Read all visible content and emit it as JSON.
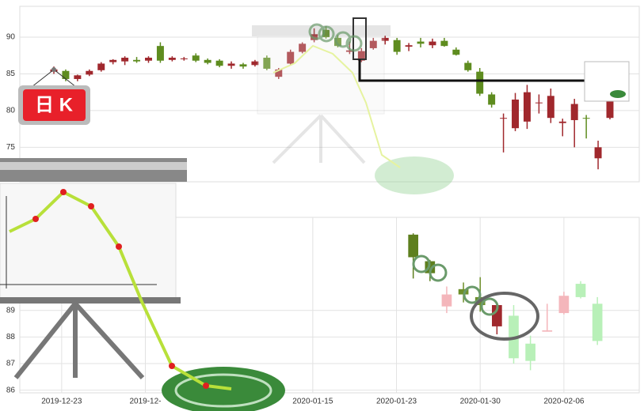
{
  "badge": "日 K",
  "chart_data": [
    {
      "type": "candlestick",
      "open": [
        85.3,
        85.4,
        84.3,
        84.9,
        85.5,
        86.6,
        86.7,
        86.9,
        86.8,
        88.8,
        86.9,
        87.0,
        87.5,
        86.9,
        86.8,
        86.1,
        86.3,
        86.2,
        87.2,
        84.6,
        86.4,
        88.0,
        89.6,
        91.0,
        89.9,
        88.0,
        86.8,
        88.5,
        89.5,
        89.6,
        88.7,
        89.4,
        88.9,
        89.5,
        88.3,
        86.5,
        85.3,
        82.2,
        78.9,
        77.6,
        78.5,
        81.0,
        79.0,
        78.3,
        78.7,
        79.0,
        73.5,
        79.0
      ],
      "high": [
        86.0,
        85.6,
        84.9,
        85.6,
        86.6,
        87.0,
        87.4,
        87.3,
        87.4,
        89.3,
        87.4,
        87.3,
        87.8,
        87.1,
        87.0,
        86.7,
        86.5,
        86.9,
        87.5,
        85.8,
        88.3,
        89.3,
        91.2,
        91.5,
        90.3,
        89.4,
        88.5,
        89.9,
        90.2,
        89.9,
        89.2,
        89.9,
        89.8,
        89.9,
        88.6,
        86.8,
        85.8,
        82.5,
        79.6,
        82.4,
        83.5,
        82.2,
        83.0,
        78.9,
        81.6,
        79.4,
        75.9,
        82.7
      ],
      "low": [
        85.0,
        84.0,
        84.0,
        84.7,
        85.3,
        86.3,
        86.2,
        86.5,
        86.5,
        86.5,
        86.7,
        86.8,
        86.6,
        86.3,
        85.9,
        85.7,
        85.7,
        86.0,
        85.5,
        84.3,
        86.2,
        87.8,
        89.3,
        89.8,
        88.6,
        87.7,
        86.6,
        88.3,
        89.0,
        87.6,
        88.1,
        88.6,
        88.5,
        88.7,
        87.5,
        85.3,
        82.0,
        80.4,
        74.3,
        77.2,
        77.5,
        79.6,
        78.3,
        76.5,
        75.0,
        76.2,
        72.0,
        78.8
      ],
      "close": [
        85.6,
        84.3,
        84.8,
        85.4,
        86.4,
        86.9,
        87.2,
        86.7,
        87.2,
        86.8,
        87.2,
        87.1,
        86.8,
        86.5,
        86.1,
        86.4,
        86.0,
        86.7,
        85.7,
        85.6,
        88.0,
        89.1,
        90.4,
        90.0,
        88.8,
        88.2,
        88.1,
        89.5,
        89.9,
        88.0,
        88.9,
        89.1,
        89.4,
        88.8,
        87.6,
        85.5,
        82.3,
        80.8,
        79.0,
        81.5,
        82.5,
        81.1,
        82.0,
        78.5,
        80.9,
        78.9,
        75.0,
        82.2
      ],
      "up_color": "#a0282d",
      "down_color": "#5e8c1f",
      "ylim": [
        70.3,
        94.2
      ],
      "yticks": [
        75,
        80,
        85,
        90
      ],
      "grid": true
    },
    {
      "type": "candlestick",
      "categories": [
        null,
        null,
        "2019-12-23",
        null,
        null,
        null,
        null,
        "2019-12-",
        null,
        null,
        null,
        null,
        null,
        null,
        null,
        null,
        null,
        "2020-01-15",
        null,
        null,
        null,
        null,
        "2020-01-23",
        null,
        null,
        null,
        null,
        "2020-01-30",
        null,
        null,
        null,
        null,
        "2020-02-06",
        null,
        null,
        null,
        null
      ],
      "open": [
        null,
        null,
        null,
        null,
        null,
        null,
        null,
        null,
        null,
        null,
        null,
        null,
        null,
        null,
        null,
        null,
        null,
        null,
        null,
        null,
        null,
        null,
        null,
        91.85,
        90.85,
        89.15,
        89.6,
        89.2,
        88.4,
        88.8,
        87.75,
        88.2,
        88.9,
        89.5,
        89.25,
        null,
        null
      ],
      "high": [
        null,
        null,
        null,
        null,
        null,
        null,
        null,
        null,
        null,
        null,
        null,
        null,
        null,
        null,
        null,
        null,
        null,
        null,
        null,
        null,
        null,
        null,
        null,
        91.9,
        90.9,
        89.9,
        90.05,
        90.25,
        89.2,
        89.2,
        88.05,
        89.25,
        89.7,
        90.1,
        89.5,
        null,
        null
      ],
      "low": [
        null,
        null,
        null,
        null,
        null,
        null,
        null,
        null,
        null,
        null,
        null,
        null,
        null,
        null,
        null,
        null,
        null,
        null,
        null,
        null,
        null,
        null,
        null,
        90.2,
        90.1,
        88.9,
        89.3,
        88.95,
        88.1,
        87.0,
        86.75,
        88.2,
        88.85,
        89.45,
        87.7,
        null,
        null
      ],
      "close": [
        null,
        null,
        null,
        null,
        null,
        null,
        null,
        null,
        null,
        null,
        null,
        null,
        null,
        null,
        null,
        null,
        null,
        null,
        null,
        null,
        null,
        null,
        null,
        91.0,
        90.4,
        89.6,
        89.8,
        89.5,
        89.2,
        87.2,
        87.1,
        88.25,
        89.55,
        90.0,
        87.85,
        null,
        null
      ],
      "colors": [
        null,
        null,
        null,
        null,
        null,
        null,
        null,
        null,
        null,
        null,
        null,
        null,
        null,
        null,
        null,
        null,
        null,
        null,
        null,
        null,
        null,
        null,
        null,
        "#5e7f1e",
        "#5e7f1e",
        "#f4b6bb",
        "#6d8f2a",
        "#6d8f2a",
        "#a0282d",
        "#b8f0b8",
        "#b8f0b8",
        "#f4b6bb",
        "#f4b6bb",
        "#b8f0b8",
        "#b8f0b8",
        null,
        null
      ],
      "ylim": [
        85.9,
        92.5
      ],
      "yticks": [
        86,
        87,
        88,
        89
      ],
      "grid": true
    }
  ]
}
